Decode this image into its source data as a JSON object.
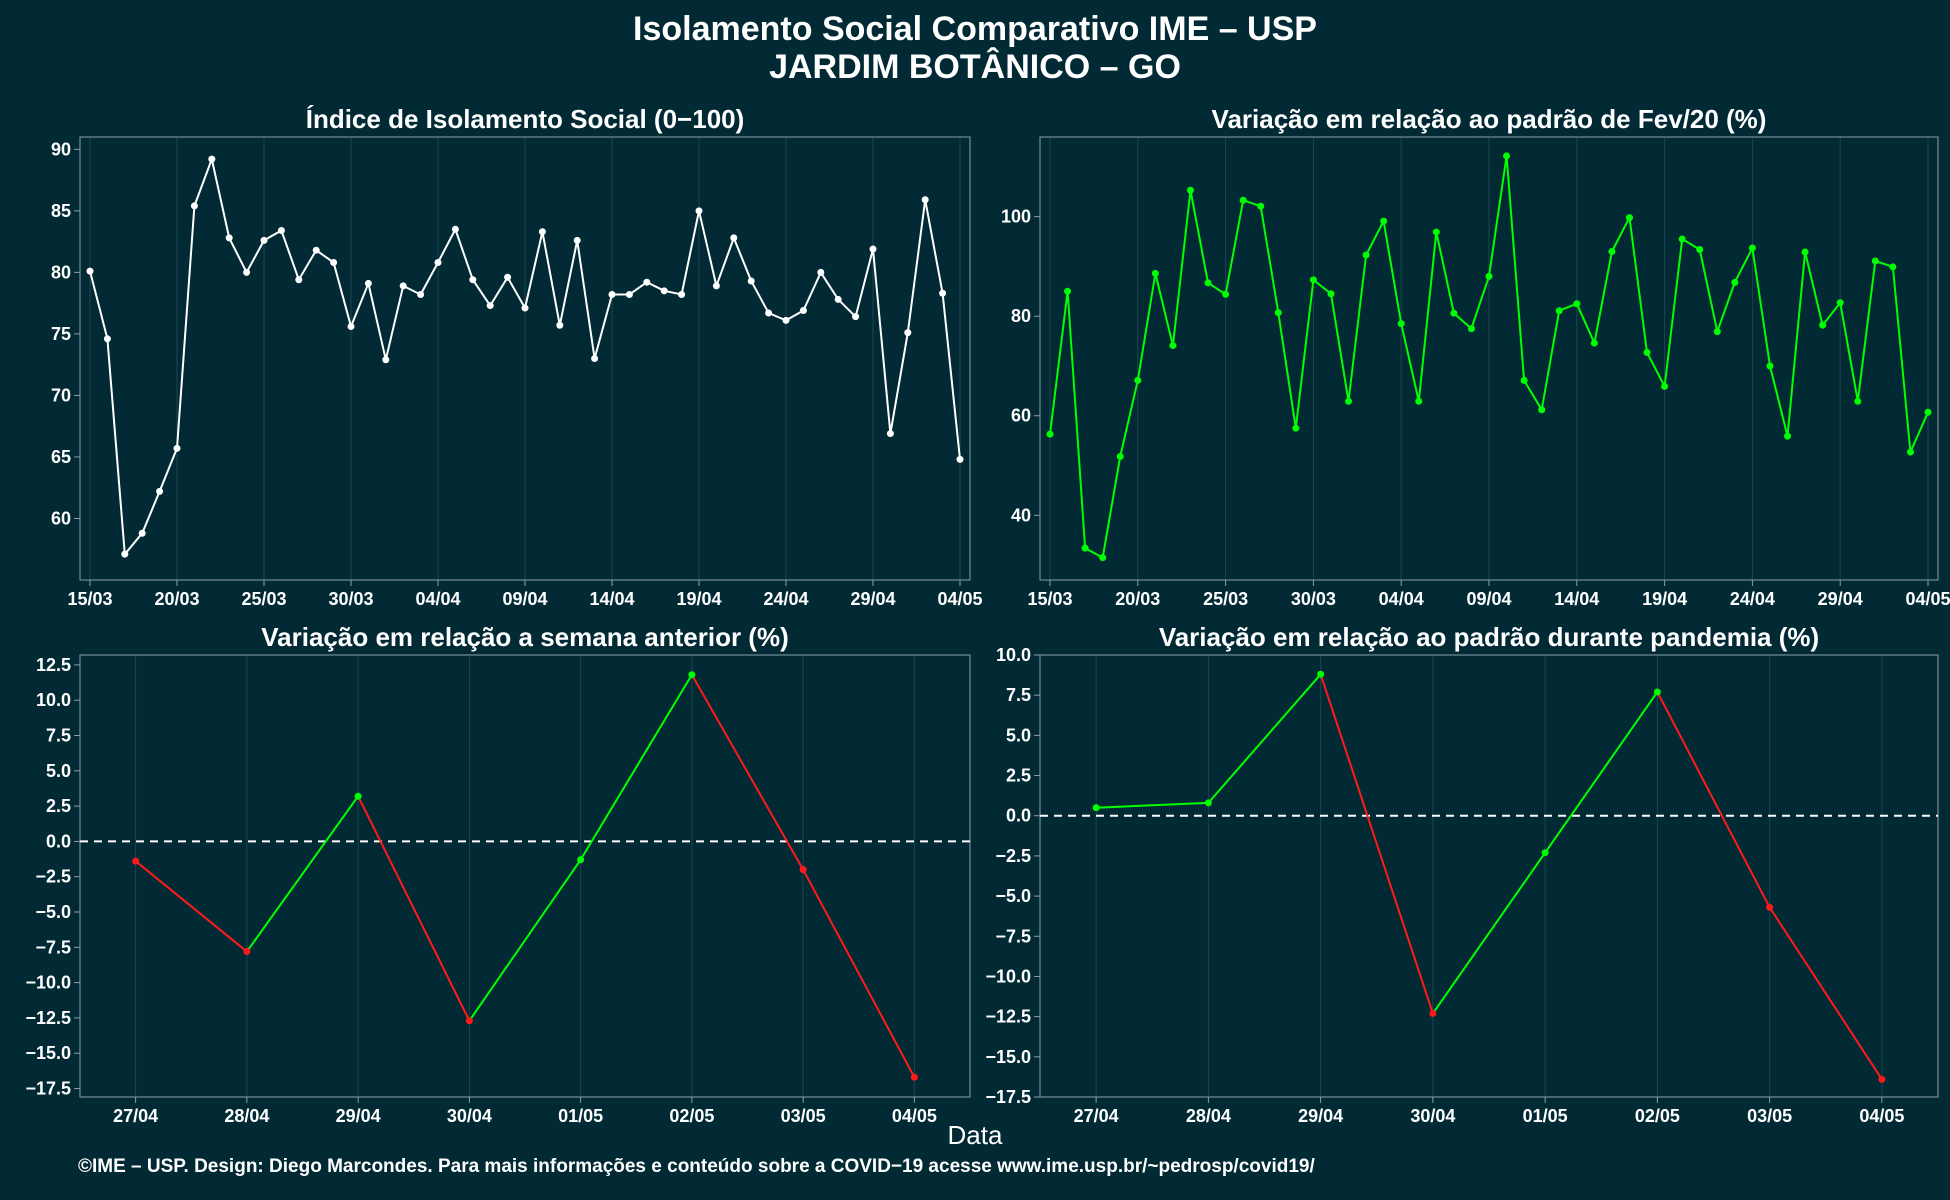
{
  "title_line1": "Isolamento Social Comparativo IME – USP",
  "title_line2": "JARDIM BOTÂNICO – GO",
  "xlabel": "Data",
  "footer": "©IME – USP. Design: Diego Marcondes. Para mais informações e conteúdo sobre a COVID−19 acesse www.ime.usp.br/~pedrosp/covid19/",
  "colors": {
    "background": "#022a35",
    "white_line": "#ffffff",
    "green": "#00ff00",
    "red": "#ff1a1a",
    "grid": "#1c4550",
    "axis": "#8aa0a6"
  },
  "chart_data": [
    {
      "type": "line",
      "title": "Índice de Isolamento Social (0−100)",
      "color": "white",
      "x_start": "15/03",
      "x_ticks": [
        "15/03",
        "20/03",
        "25/03",
        "30/03",
        "04/04",
        "09/04",
        "14/04",
        "19/04",
        "24/04",
        "29/04",
        "04/05"
      ],
      "y_ticks": [
        "90",
        "85",
        "80",
        "75",
        "70",
        "65",
        "60"
      ],
      "ylim": [
        55,
        91
      ],
      "values": [
        80.1,
        74.6,
        57.1,
        58.8,
        62.2,
        65.7,
        85.4,
        89.2,
        82.8,
        80.0,
        82.6,
        83.4,
        79.4,
        81.8,
        80.8,
        75.6,
        79.1,
        72.9,
        78.9,
        78.2,
        80.8,
        83.5,
        79.4,
        77.3,
        79.6,
        77.1,
        83.3,
        75.7,
        82.6,
        73.0,
        78.2,
        78.2,
        79.2,
        78.5,
        78.2,
        85.0,
        78.9,
        82.8,
        79.3,
        76.7,
        76.1,
        76.9,
        80.0,
        77.8,
        76.4,
        81.9,
        66.9,
        75.1,
        85.9,
        78.3,
        64.8
      ]
    },
    {
      "type": "line",
      "title": "Variação em relação ao padrão de Fev/20 (%)",
      "color": "green",
      "x_start": "15/03",
      "x_ticks": [
        "15/03",
        "20/03",
        "25/03",
        "30/03",
        "04/04",
        "09/04",
        "14/04",
        "19/04",
        "24/04",
        "29/04",
        "04/05"
      ],
      "y_ticks": [
        "100",
        "80",
        "60",
        "40"
      ],
      "ylim": [
        27,
        116
      ],
      "values": [
        56.3,
        85.0,
        33.4,
        31.5,
        51.8,
        67.1,
        88.6,
        74.1,
        105.3,
        86.7,
        84.4,
        103.3,
        102.1,
        80.7,
        57.5,
        87.3,
        84.5,
        62.9,
        92.3,
        99.1,
        78.5,
        62.9,
        96.9,
        80.6,
        77.5,
        88.0,
        112.2,
        67.1,
        61.2,
        81.1,
        82.5,
        74.6,
        93.0,
        99.8,
        72.7,
        65.9,
        95.5,
        93.4,
        76.9,
        86.8,
        93.7,
        70.0,
        55.9,
        92.9,
        78.2,
        82.7,
        62.9,
        91.1,
        89.9,
        52.7,
        60.7
      ]
    },
    {
      "type": "line",
      "title": "Variação em relação a semana anterior (%)",
      "x_ticks": [
        "27/04",
        "28/04",
        "29/04",
        "30/04",
        "01/05",
        "02/05",
        "03/05",
        "04/05"
      ],
      "y_ticks": [
        "12.5",
        "10.0",
        "7.5",
        "5.0",
        "2.5",
        "0.0",
        "−2.5",
        "−5.0",
        "−7.5",
        "−10.0",
        "−12.5",
        "−15.0",
        "−17.5"
      ],
      "ylim": [
        -18.1,
        13.2
      ],
      "values": [
        -1.4,
        -7.8,
        3.2,
        -12.7,
        -1.3,
        11.8,
        -2.0,
        -16.7
      ],
      "baseline": 0
    },
    {
      "type": "line",
      "title": "Variação em relação ao padrão durante pandemia (%)",
      "x_ticks": [
        "27/04",
        "28/04",
        "29/04",
        "30/04",
        "01/05",
        "02/05",
        "03/05",
        "04/05"
      ],
      "y_ticks": [
        "10.0",
        "7.5",
        "5.0",
        "2.5",
        "0.0",
        "−2.5",
        "−5.0",
        "−7.5",
        "−10.0",
        "−12.5",
        "−15.0",
        "−17.5"
      ],
      "ylim": [
        -17.5,
        10.0
      ],
      "values": [
        0.5,
        0.8,
        8.8,
        -12.3,
        -2.3,
        7.7,
        -5.7,
        -16.4
      ],
      "baseline": 0
    }
  ]
}
